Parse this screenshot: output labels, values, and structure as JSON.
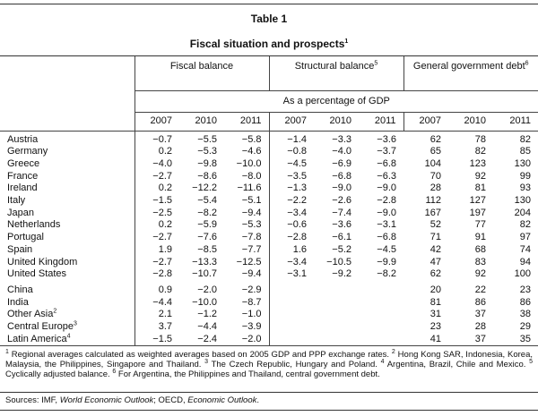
{
  "table_label": "Table 1",
  "title": "Fiscal situation and prospects",
  "title_note": "1",
  "groups": [
    {
      "label": "Fiscal balance",
      "note": ""
    },
    {
      "label": "Structural balance",
      "note": "5"
    },
    {
      "label": "General government debt",
      "note": "6"
    }
  ],
  "unit": "As a percentage of GDP",
  "years": [
    "2007",
    "2010",
    "2011",
    "2007",
    "2010",
    "2011",
    "2007",
    "2010",
    "2011"
  ],
  "rows_advanced": [
    {
      "name": "Austria",
      "note": "",
      "v": [
        "−0.7",
        "−5.5",
        "−5.8",
        "−1.4",
        "−3.3",
        "−3.6",
        "62",
        "78",
        "82"
      ]
    },
    {
      "name": "Germany",
      "note": "",
      "v": [
        "0.2",
        "−5.3",
        "−4.6",
        "−0.8",
        "−4.0",
        "−3.7",
        "65",
        "82",
        "85"
      ]
    },
    {
      "name": "Greece",
      "note": "",
      "v": [
        "−4.0",
        "−9.8",
        "−10.0",
        "−4.5",
        "−6.9",
        "−6.8",
        "104",
        "123",
        "130"
      ]
    },
    {
      "name": "France",
      "note": "",
      "v": [
        "−2.7",
        "−8.6",
        "−8.0",
        "−3.5",
        "−6.8",
        "−6.3",
        "70",
        "92",
        "99"
      ]
    },
    {
      "name": "Ireland",
      "note": "",
      "v": [
        "0.2",
        "−12.2",
        "−11.6",
        "−1.3",
        "−9.0",
        "−9.0",
        "28",
        "81",
        "93"
      ]
    },
    {
      "name": "Italy",
      "note": "",
      "v": [
        "−1.5",
        "−5.4",
        "−5.1",
        "−2.2",
        "−2.6",
        "−2.8",
        "112",
        "127",
        "130"
      ]
    },
    {
      "name": "Japan",
      "note": "",
      "v": [
        "−2.5",
        "−8.2",
        "−9.4",
        "−3.4",
        "−7.4",
        "−9.0",
        "167",
        "197",
        "204"
      ]
    },
    {
      "name": "Netherlands",
      "note": "",
      "v": [
        "0.2",
        "−5.9",
        "−5.3",
        "−0.6",
        "−3.6",
        "−3.1",
        "52",
        "77",
        "82"
      ]
    },
    {
      "name": "Portugal",
      "note": "",
      "v": [
        "−2.7",
        "−7.6",
        "−7.8",
        "−2.8",
        "−6.1",
        "−6.8",
        "71",
        "91",
        "97"
      ]
    },
    {
      "name": "Spain",
      "note": "",
      "v": [
        "1.9",
        "−8.5",
        "−7.7",
        "1.6",
        "−5.2",
        "−4.5",
        "42",
        "68",
        "74"
      ]
    },
    {
      "name": "United Kingdom",
      "note": "",
      "v": [
        "−2.7",
        "−13.3",
        "−12.5",
        "−3.4",
        "−10.5",
        "−9.9",
        "47",
        "83",
        "94"
      ]
    },
    {
      "name": "United States",
      "note": "",
      "v": [
        "−2.8",
        "−10.7",
        "−9.4",
        "−3.1",
        "−9.2",
        "−8.2",
        "62",
        "92",
        "100"
      ]
    }
  ],
  "rows_emerging": [
    {
      "name": "China",
      "note": "",
      "v": [
        "0.9",
        "−2.0",
        "−2.9",
        "",
        "",
        "",
        "20",
        "22",
        "23"
      ]
    },
    {
      "name": "India",
      "note": "",
      "v": [
        "−4.4",
        "−10.0",
        "−8.7",
        "",
        "",
        "",
        "81",
        "86",
        "86"
      ]
    },
    {
      "name": "Other Asia",
      "note": "2",
      "v": [
        "2.1",
        "−1.2",
        "−1.0",
        "",
        "",
        "",
        "31",
        "37",
        "38"
      ]
    },
    {
      "name": "Central Europe",
      "note": "3",
      "v": [
        "3.7",
        "−4.4",
        "−3.9",
        "",
        "",
        "",
        "23",
        "28",
        "29"
      ]
    },
    {
      "name": "Latin America",
      "note": "4",
      "v": [
        "−1.5",
        "−2.4",
        "−2.0",
        "",
        "",
        "",
        "41",
        "37",
        "35"
      ]
    }
  ],
  "footnotes": [
    {
      "n": "1",
      "t": "Regional averages calculated as weighted averages based on 2005 GDP and PPP exchange rates."
    },
    {
      "n": "2",
      "t": "Hong Kong SAR, Indonesia, Korea, Malaysia, the Philippines, Singapore and Thailand."
    },
    {
      "n": "3",
      "t": "The Czech Republic, Hungary and Poland."
    },
    {
      "n": "4",
      "t": "Argentina, Brazil, Chile and Mexico."
    },
    {
      "n": "5",
      "t": "Cyclically adjusted balance."
    },
    {
      "n": "6",
      "t": "For Argentina, the Philippines and Thailand, central government debt."
    }
  ],
  "sources": {
    "prefix": "Sources: IMF, ",
    "pub1": "World Economic Outlook",
    "mid": "; OECD, ",
    "pub2": "Economic Outlook",
    "suffix": "."
  }
}
